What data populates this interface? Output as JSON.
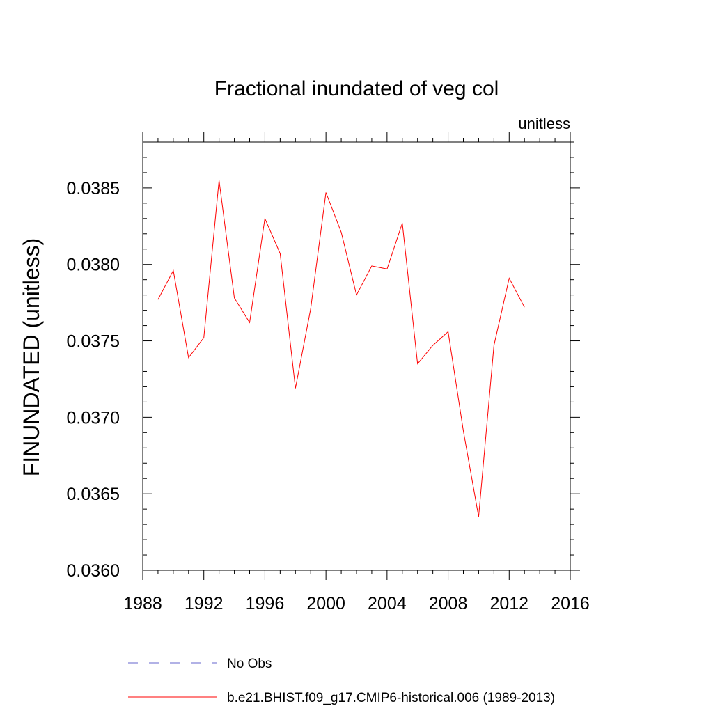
{
  "chart_data": {
    "type": "line",
    "title": "Fractional inundated of veg col",
    "units_label": "unitless",
    "xlabel": "",
    "ylabel": "FINUNDATED  (unitless)",
    "xlim": [
      1988,
      2016
    ],
    "ylim": [
      0.036,
      0.0388
    ],
    "x_ticks": [
      "1988",
      "1992",
      "1996",
      "2000",
      "2004",
      "2008",
      "2012",
      "2016"
    ],
    "y_ticks": [
      "0.0360",
      "0.0365",
      "0.0370",
      "0.0375",
      "0.0380",
      "0.0385"
    ],
    "grid": false,
    "legend_position": "bottom",
    "series": [
      {
        "name": "b.e21.BHIST.f09_g17.CMIP6-historical.006 (1989-2013)",
        "color": "#ff0000",
        "style": "solid",
        "x": [
          1989,
          1990,
          1991,
          1992,
          1993,
          1994,
          1995,
          1996,
          1997,
          1998,
          1999,
          2000,
          2001,
          2002,
          2003,
          2004,
          2005,
          2006,
          2007,
          2008,
          2009,
          2010,
          2011,
          2012,
          2013
        ],
        "y": [
          0.03777,
          0.03796,
          0.03739,
          0.03752,
          0.03855,
          0.03778,
          0.03762,
          0.0383,
          0.03807,
          0.03719,
          0.03771,
          0.03847,
          0.03821,
          0.0378,
          0.03799,
          0.03797,
          0.03827,
          0.03735,
          0.03747,
          0.03756,
          0.03691,
          0.03635,
          0.03747,
          0.03791,
          0.03772
        ]
      }
    ],
    "legend": [
      {
        "label": "No Obs",
        "color": "#6666cc",
        "style": "dashed"
      },
      {
        "label": "b.e21.BHIST.f09_g17.CMIP6-historical.006 (1989-2013)",
        "color": "#ff0000",
        "style": "solid"
      }
    ]
  }
}
